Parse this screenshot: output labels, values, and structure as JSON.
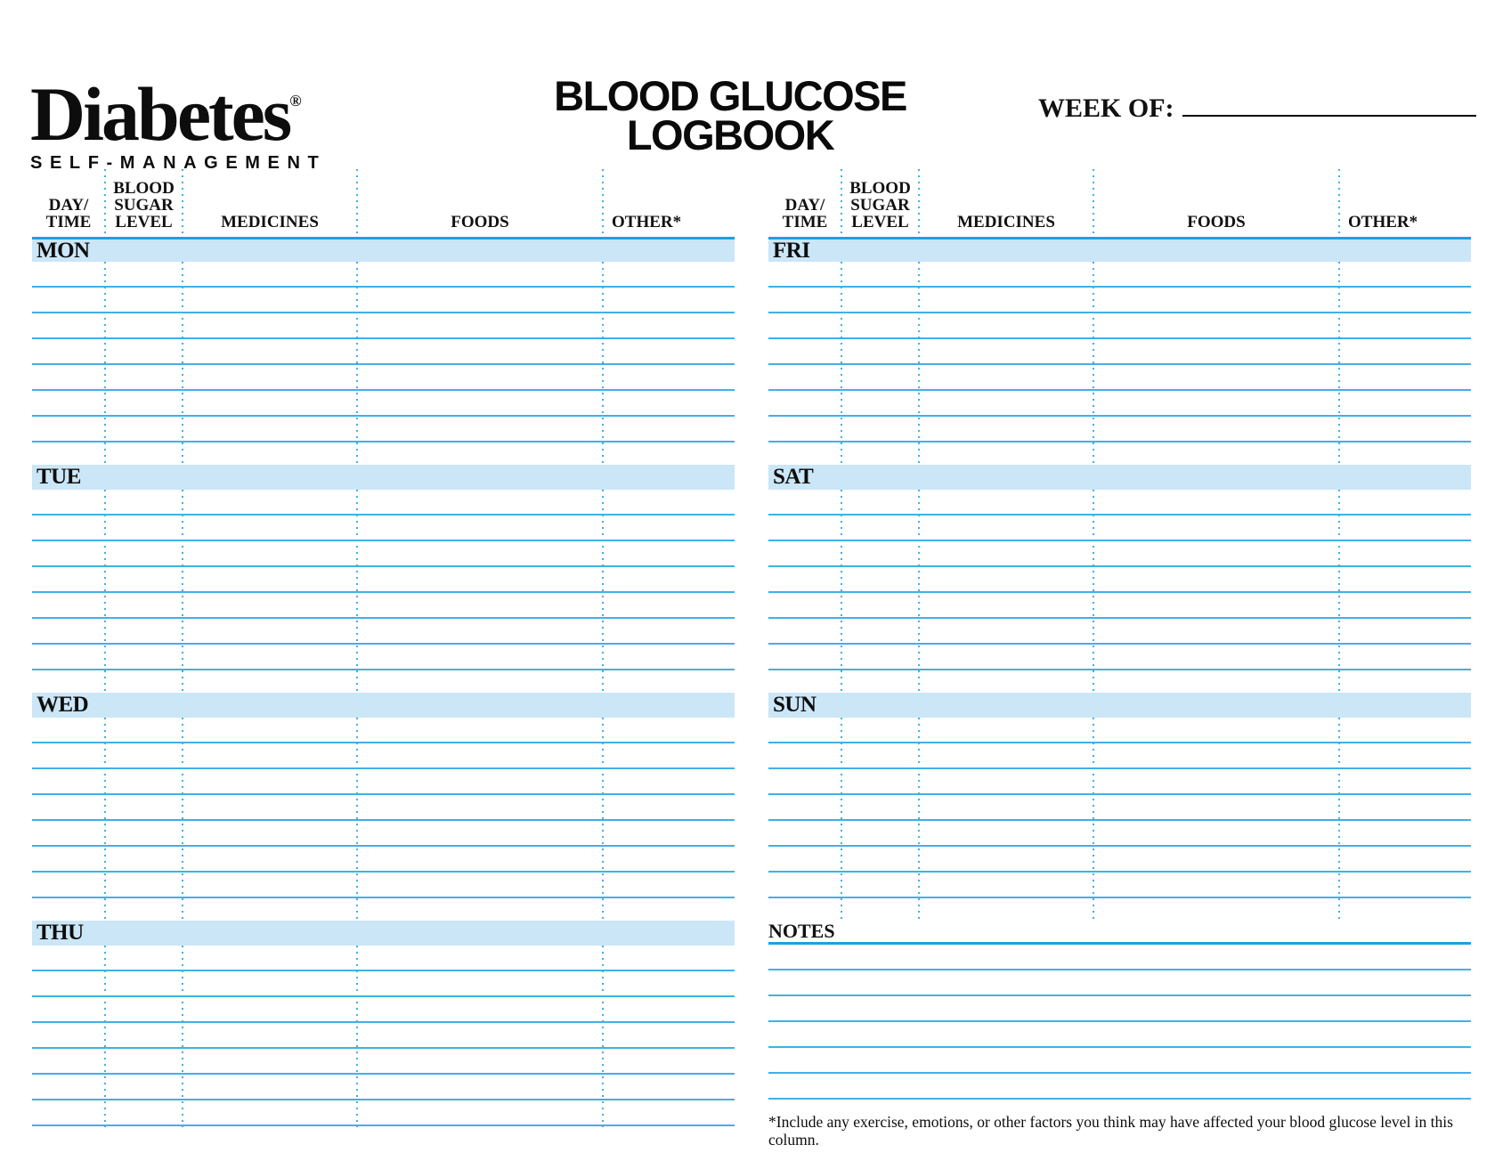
{
  "logo": {
    "brand": "Diabetes",
    "registered": "®",
    "subtitle": "SELF-MANAGEMENT"
  },
  "header": {
    "title_line1": "BLOOD GLUCOSE",
    "title_line2": "LOGBOOK",
    "week_of_label": "WEEK OF:",
    "week_of_value": ""
  },
  "columns": [
    {
      "line1": "DAY/",
      "line2": "TIME"
    },
    {
      "line1": "BLOOD",
      "line2": "SUGAR",
      "line3": "LEVEL"
    },
    {
      "line1": "MEDICINES"
    },
    {
      "line1": "FOODS"
    },
    {
      "line1": "OTHER*"
    }
  ],
  "days": [
    {
      "label": "MON"
    },
    {
      "label": "TUE"
    },
    {
      "label": "WED"
    },
    {
      "label": "THU"
    },
    {
      "label": "FRI"
    },
    {
      "label": "SAT"
    },
    {
      "label": "SUN"
    }
  ],
  "notes": {
    "label": "NOTES"
  },
  "footnote": {
    "text": "*Include any exercise, emotions, or other factors you think may have affected your blood glucose level in this column."
  },
  "colors": {
    "line_blue": "#3fb1e6",
    "dark_blue": "#1fa0dc",
    "bar_fill": "#cbe6f7",
    "text_black": "#111111"
  }
}
